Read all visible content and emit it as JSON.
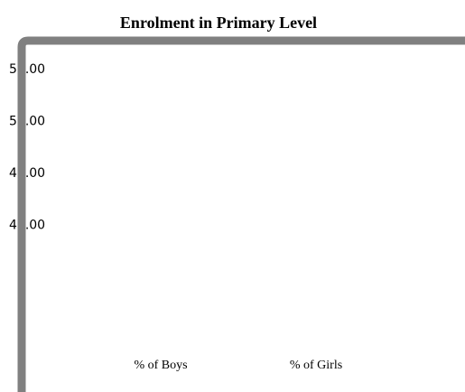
{
  "chart_data": {
    "type": "bar",
    "title": "Enrolment in Primary Level",
    "categories": [
      "% of Boys",
      "% of Girls"
    ],
    "ylim": [
      28,
      58
    ],
    "yticks": [
      {
        "value": 55,
        "label": "55.00"
      },
      {
        "value": 50,
        "label": "50.00"
      },
      {
        "value": 45,
        "label": "45.00"
      },
      {
        "value": 40,
        "label": "40.00"
      }
    ],
    "frame_color": "#808080"
  }
}
